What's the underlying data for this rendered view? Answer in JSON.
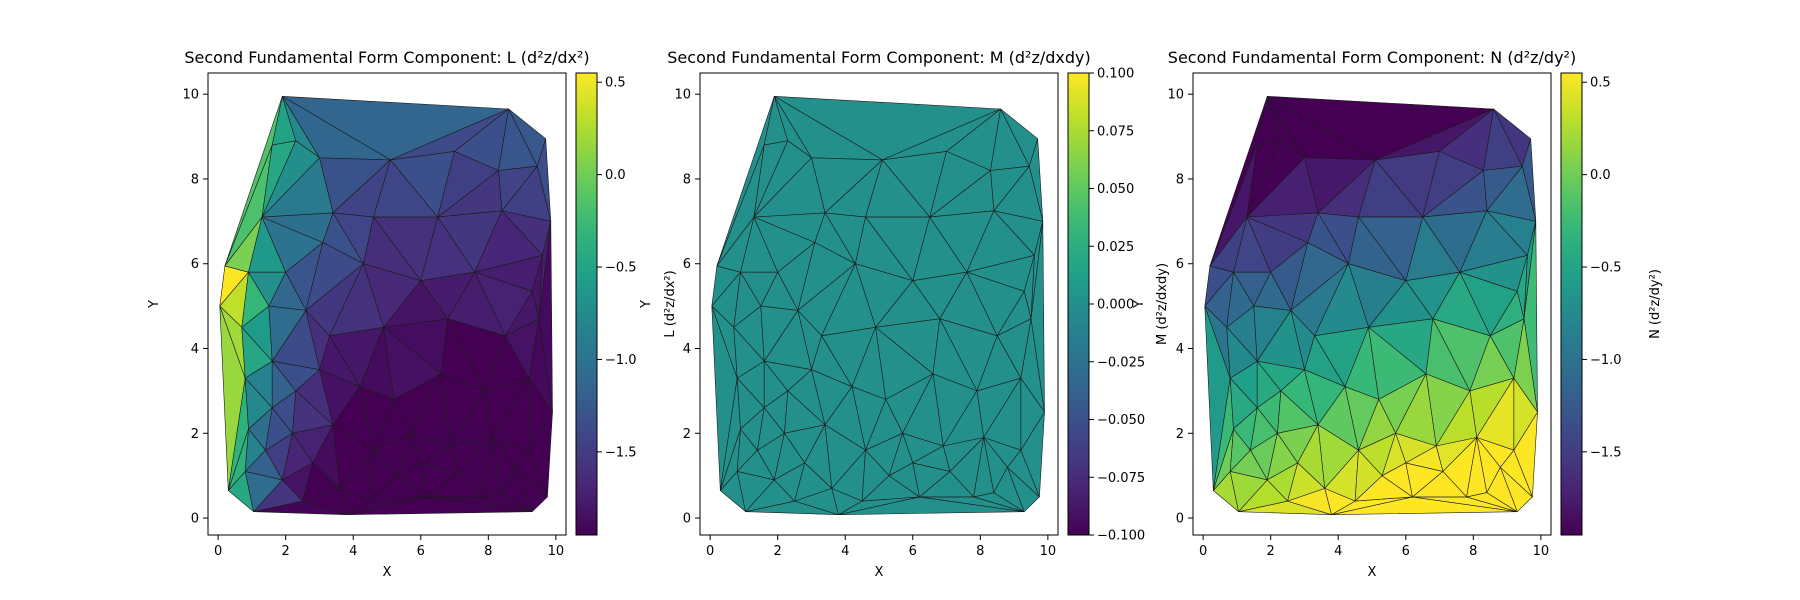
{
  "chart_data": [
    {
      "type": "heatmap",
      "title": "Second Fundamental Form Component: L (d²z/dx²)",
      "xlabel": "X",
      "ylabel": "Y",
      "xlim": [
        -0.3,
        10.3
      ],
      "ylim": [
        -0.4,
        10.5
      ],
      "xticks": [
        0,
        2,
        4,
        6,
        8,
        10
      ],
      "yticks": [
        0,
        2,
        4,
        6,
        8,
        10
      ],
      "colorbar_label": "L (d²z/dx²)",
      "clim": [
        -1.95,
        0.55
      ],
      "colorbar_ticks": [
        0.5,
        0.0,
        -0.5,
        -1.0,
        -1.5
      ],
      "colormap": "viridis",
      "field": "L"
    },
    {
      "type": "heatmap",
      "title": "Second Fundamental Form Component: M (d²z/dxdy)",
      "xlabel": "X",
      "ylabel": "Y",
      "xlim": [
        -0.3,
        10.3
      ],
      "ylim": [
        -0.4,
        10.5
      ],
      "xticks": [
        0,
        2,
        4,
        6,
        8,
        10
      ],
      "yticks": [
        0,
        2,
        4,
        6,
        8,
        10
      ],
      "colorbar_label": "M (d²z/dxdy)",
      "clim": [
        -0.1,
        0.1
      ],
      "colorbar_ticks": [
        0.1,
        0.075,
        0.05,
        0.025,
        0.0,
        -0.025,
        -0.05,
        -0.075,
        -0.1
      ],
      "colormap": "viridis",
      "field": "M"
    },
    {
      "type": "heatmap",
      "title": "Second Fundamental Form Component: N (d²z/dy²)",
      "xlabel": "X",
      "ylabel": "Y",
      "xlim": [
        -0.3,
        10.3
      ],
      "ylim": [
        -0.4,
        10.5
      ],
      "xticks": [
        0,
        2,
        4,
        6,
        8,
        10
      ],
      "yticks": [
        0,
        2,
        4,
        6,
        8,
        10
      ],
      "colorbar_label": "N (d²z/dy²)",
      "clim": [
        -1.95,
        0.55
      ],
      "colorbar_ticks": [
        0.5,
        0.0,
        -0.5,
        -1.0,
        -1.5
      ],
      "colormap": "viridis",
      "field": "N"
    }
  ],
  "points": [
    [
      1.9,
      9.95
    ],
    [
      8.6,
      9.65
    ],
    [
      9.7,
      8.95
    ],
    [
      9.85,
      7.0
    ],
    [
      9.9,
      2.5
    ],
    [
      9.75,
      0.5
    ],
    [
      9.3,
      0.15
    ],
    [
      3.8,
      0.08
    ],
    [
      1.05,
      0.15
    ],
    [
      0.3,
      0.65
    ],
    [
      0.05,
      5.0
    ],
    [
      0.2,
      5.95
    ],
    [
      1.6,
      8.8
    ],
    [
      2.3,
      8.9
    ],
    [
      3.0,
      8.5
    ],
    [
      5.1,
      8.45
    ],
    [
      7.0,
      8.65
    ],
    [
      8.3,
      8.2
    ],
    [
      9.45,
      8.3
    ],
    [
      1.3,
      7.1
    ],
    [
      3.4,
      7.2
    ],
    [
      4.6,
      7.1
    ],
    [
      6.5,
      7.1
    ],
    [
      8.4,
      7.25
    ],
    [
      9.6,
      6.2
    ],
    [
      0.9,
      5.8
    ],
    [
      2.0,
      5.8
    ],
    [
      3.1,
      6.5
    ],
    [
      4.3,
      6.0
    ],
    [
      6.0,
      5.6
    ],
    [
      7.6,
      5.8
    ],
    [
      9.3,
      5.35
    ],
    [
      0.7,
      4.5
    ],
    [
      1.5,
      5.0
    ],
    [
      2.6,
      4.9
    ],
    [
      3.3,
      4.3
    ],
    [
      4.9,
      4.5
    ],
    [
      6.8,
      4.7
    ],
    [
      8.5,
      4.3
    ],
    [
      9.5,
      4.7
    ],
    [
      0.8,
      3.3
    ],
    [
      1.6,
      3.7
    ],
    [
      2.3,
      3.0
    ],
    [
      3.0,
      3.5
    ],
    [
      4.2,
      3.1
    ],
    [
      5.2,
      2.8
    ],
    [
      6.6,
      3.4
    ],
    [
      7.9,
      3.0
    ],
    [
      9.2,
      3.3
    ],
    [
      0.9,
      2.1
    ],
    [
      1.4,
      1.6
    ],
    [
      2.2,
      2.0
    ],
    [
      3.4,
      2.2
    ],
    [
      4.6,
      1.6
    ],
    [
      5.7,
      2.0
    ],
    [
      6.9,
      1.7
    ],
    [
      8.1,
      1.9
    ],
    [
      9.2,
      1.6
    ],
    [
      0.8,
      1.1
    ],
    [
      1.9,
      0.9
    ],
    [
      2.8,
      1.3
    ],
    [
      3.6,
      0.7
    ],
    [
      4.5,
      0.4
    ],
    [
      5.3,
      1.0
    ],
    [
      6.2,
      0.5
    ],
    [
      7.1,
      1.1
    ],
    [
      7.8,
      0.5
    ],
    [
      8.4,
      0.6
    ],
    [
      8.8,
      1.2
    ],
    [
      2.5,
      0.4
    ],
    [
      1.6,
      2.6
    ],
    [
      6.0,
      1.3
    ]
  ]
}
